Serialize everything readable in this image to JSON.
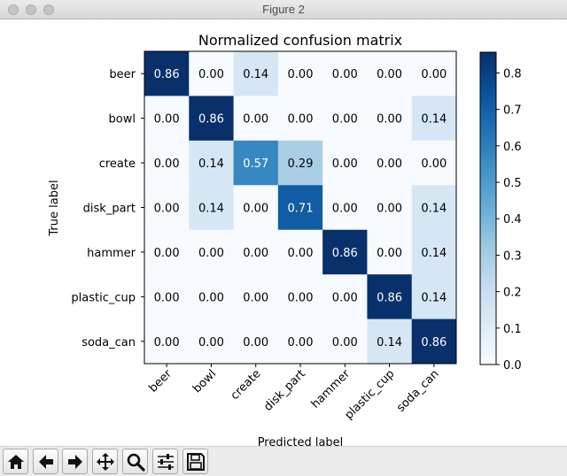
{
  "window": {
    "title": "Figure 2"
  },
  "toolbar": {
    "buttons": [
      {
        "name": "home-button",
        "icon": "home-icon"
      },
      {
        "name": "back-button",
        "icon": "arrow-left-icon"
      },
      {
        "name": "forward-button",
        "icon": "arrow-right-icon"
      },
      {
        "name": "pan-button",
        "icon": "move-icon"
      },
      {
        "name": "zoom-button",
        "icon": "magnifier-icon"
      },
      {
        "name": "configure-subplots-button",
        "icon": "sliders-icon"
      },
      {
        "name": "save-button",
        "icon": "floppy-disk-icon"
      }
    ]
  },
  "chart_data": {
    "type": "heatmap",
    "title": "Normalized confusion matrix",
    "xlabel": "Predicted label",
    "ylabel": "True label",
    "row_labels": [
      "beer",
      "bowl",
      "create",
      "disk_part",
      "hammer",
      "plastic_cup",
      "soda_can"
    ],
    "col_labels": [
      "beer",
      "bowl",
      "create",
      "disk_part",
      "hammer",
      "plastic_cup",
      "soda_can"
    ],
    "values": [
      [
        0.86,
        0.0,
        0.14,
        0.0,
        0.0,
        0.0,
        0.0
      ],
      [
        0.0,
        0.86,
        0.0,
        0.0,
        0.0,
        0.0,
        0.14
      ],
      [
        0.0,
        0.14,
        0.57,
        0.29,
        0.0,
        0.0,
        0.0
      ],
      [
        0.0,
        0.14,
        0.0,
        0.71,
        0.0,
        0.0,
        0.14
      ],
      [
        0.0,
        0.0,
        0.0,
        0.0,
        0.86,
        0.0,
        0.14
      ],
      [
        0.0,
        0.0,
        0.0,
        0.0,
        0.0,
        0.86,
        0.14
      ],
      [
        0.0,
        0.0,
        0.0,
        0.0,
        0.0,
        0.14,
        0.86
      ]
    ],
    "colormap": "Blues",
    "colorbar": {
      "ticks": [
        0.0,
        0.1,
        0.2,
        0.3,
        0.4,
        0.5,
        0.6,
        0.7,
        0.8
      ],
      "tick_labels": [
        "0.0",
        "0.1",
        "0.2",
        "0.3",
        "0.4",
        "0.5",
        "0.6",
        "0.7",
        "0.8"
      ],
      "vmin": 0.0,
      "vmax": 0.857
    },
    "grid": false
  }
}
